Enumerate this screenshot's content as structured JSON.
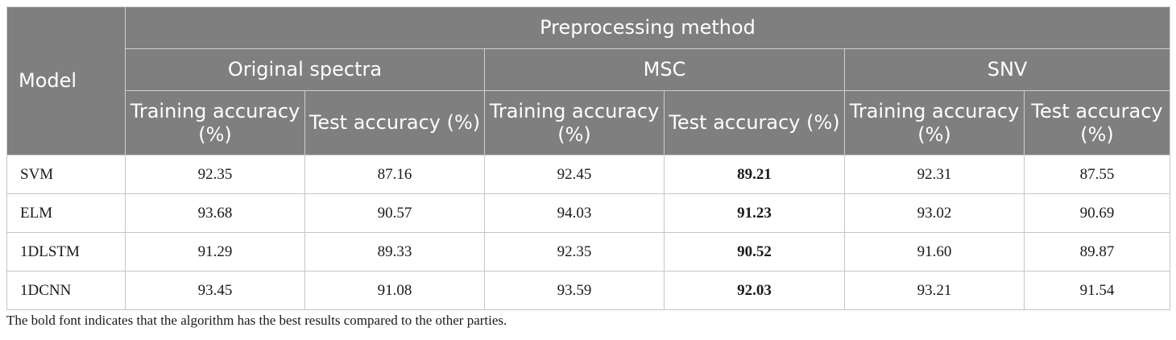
{
  "header": {
    "model_label": "Model",
    "group_label": "Preprocessing method",
    "methods": [
      "Original spectra",
      "MSC",
      "SNV"
    ],
    "metrics": [
      "Training accuracy (%)",
      "Test accuracy (%)",
      "Training accuracy (%)",
      "Test accuracy (%)",
      "Training accuracy (%)",
      "Test accuracy (%)"
    ]
  },
  "rows": [
    {
      "model": "SVM",
      "values": [
        "92.35",
        "87.16",
        "92.45",
        "89.21",
        "92.31",
        "87.55"
      ]
    },
    {
      "model": "ELM",
      "values": [
        "93.68",
        "90.57",
        "94.03",
        "91.23",
        "93.02",
        "90.69"
      ]
    },
    {
      "model": "1DLSTM",
      "values": [
        "91.29",
        "89.33",
        "92.35",
        "90.52",
        "91.60",
        "89.87"
      ]
    },
    {
      "model": "1DCNN",
      "values": [
        "93.45",
        "91.08",
        "93.59",
        "92.03",
        "93.21",
        "91.54"
      ]
    }
  ],
  "bold_column": "MSC test accuracy",
  "colors": {
    "header_bg": "#7f7f7f",
    "header_text": "#ffffff",
    "grid": "#c6c6c6"
  },
  "footnote": "The bold font indicates that the algorithm has the best results compared to the other parties."
}
